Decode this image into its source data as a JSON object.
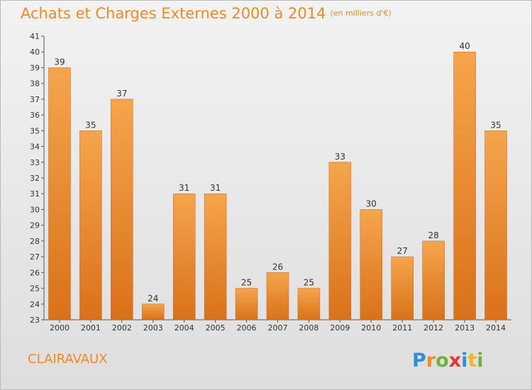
{
  "header": {
    "title": "Achats et Charges Externes 2000 à 2014",
    "unit": "(en milliers d'€)"
  },
  "footer": {
    "town": "CLAIRAVAUX",
    "brand": "Proxiti"
  },
  "colors": {
    "accent": "#f08a24",
    "bar_top": "#f5a54c",
    "bar_bottom": "#d9711a",
    "axis": "#555555"
  },
  "chart_data": {
    "type": "bar",
    "title": "Achats et Charges Externes 2000 à 2014",
    "subtitle": "(en milliers d'€)",
    "xlabel": "",
    "ylabel": "",
    "categories": [
      "2000",
      "2001",
      "2002",
      "2003",
      "2004",
      "2005",
      "2006",
      "2007",
      "2008",
      "2009",
      "2010",
      "2011",
      "2012",
      "2013",
      "2014"
    ],
    "values": [
      39,
      35,
      37,
      24,
      31,
      31,
      25,
      26,
      25,
      33,
      30,
      27,
      28,
      40,
      35
    ],
    "ylim": [
      23,
      41
    ],
    "yticks": [
      23,
      24,
      25,
      26,
      27,
      28,
      29,
      30,
      31,
      32,
      33,
      34,
      35,
      36,
      37,
      38,
      39,
      40,
      41
    ],
    "grid": false,
    "legend": "none",
    "data_labels": true
  }
}
